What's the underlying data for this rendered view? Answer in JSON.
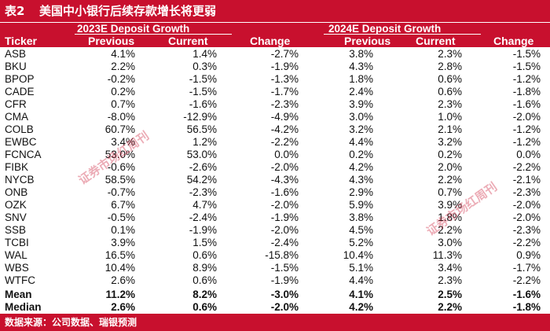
{
  "banner": {
    "number": "表2",
    "title": "美国中小银行后续存款增长将更弱"
  },
  "groups": {
    "g2023": "2023E Deposit Growth",
    "g2024": "2024E Deposit Growth"
  },
  "headers": {
    "ticker": "Ticker",
    "prev1": "Previous",
    "curr1": "Current",
    "chg1": "Change",
    "prev2": "Previous",
    "curr2": "Current",
    "chg2": "Change"
  },
  "rows": [
    [
      "ASB",
      "4.1%",
      "1.4%",
      "-2.7%",
      "3.8%",
      "2.3%",
      "-1.5%"
    ],
    [
      "BKU",
      "2.2%",
      "0.3%",
      "-1.9%",
      "4.3%",
      "2.8%",
      "-1.5%"
    ],
    [
      "BPOP",
      "-0.2%",
      "-1.5%",
      "-1.3%",
      "1.8%",
      "0.6%",
      "-1.2%"
    ],
    [
      "CADE",
      "0.2%",
      "-1.5%",
      "-1.7%",
      "2.4%",
      "0.6%",
      "-1.8%"
    ],
    [
      "CFR",
      "0.7%",
      "-1.6%",
      "-2.3%",
      "3.9%",
      "2.3%",
      "-1.6%"
    ],
    [
      "CMA",
      "-8.0%",
      "-12.9%",
      "-4.9%",
      "3.0%",
      "1.0%",
      "-2.0%"
    ],
    [
      "COLB",
      "60.7%",
      "56.5%",
      "-4.2%",
      "3.2%",
      "2.1%",
      "-1.2%"
    ],
    [
      "EWBC",
      "3.4%",
      "1.2%",
      "-2.2%",
      "4.4%",
      "3.2%",
      "-1.2%"
    ],
    [
      "FCNCA",
      "53.0%",
      "53.0%",
      "0.0%",
      "0.2%",
      "0.2%",
      "0.0%"
    ],
    [
      "FIBK",
      "-0.6%",
      "-2.6%",
      "-2.0%",
      "4.2%",
      "2.0%",
      "-2.2%"
    ],
    [
      "NYCB",
      "58.5%",
      "54.2%",
      "-4.3%",
      "4.3%",
      "2.2%",
      "-2.1%"
    ],
    [
      "ONB",
      "-0.7%",
      "-2.3%",
      "-1.6%",
      "2.9%",
      "0.7%",
      "-2.3%"
    ],
    [
      "OZK",
      "6.7%",
      "4.7%",
      "-2.0%",
      "5.9%",
      "3.9%",
      "-2.0%"
    ],
    [
      "SNV",
      "-0.5%",
      "-2.4%",
      "-1.9%",
      "3.8%",
      "1.8%",
      "-2.0%"
    ],
    [
      "SSB",
      "0.1%",
      "-1.9%",
      "-2.0%",
      "4.5%",
      "2.2%",
      "-2.3%"
    ],
    [
      "TCBI",
      "3.9%",
      "1.5%",
      "-2.4%",
      "5.2%",
      "3.0%",
      "-2.2%"
    ],
    [
      "WAL",
      "16.5%",
      "0.6%",
      "-15.8%",
      "10.4%",
      "11.3%",
      "0.9%"
    ],
    [
      "WBS",
      "10.4%",
      "8.9%",
      "-1.5%",
      "5.1%",
      "3.4%",
      "-1.7%"
    ],
    [
      "WTFC",
      "2.6%",
      "0.6%",
      "-1.9%",
      "4.4%",
      "2.3%",
      "-2.2%"
    ]
  ],
  "summary": [
    [
      "Mean",
      "11.2%",
      "8.2%",
      "-3.0%",
      "4.1%",
      "2.5%",
      "-1.6%"
    ],
    [
      "Median",
      "2.6%",
      "0.6%",
      "-2.0%",
      "4.2%",
      "2.2%",
      "-1.8%"
    ]
  ],
  "footer": "数据来源：公司数据、瑞银预测",
  "watermark": {
    "text": "证券市场红周刊"
  }
}
